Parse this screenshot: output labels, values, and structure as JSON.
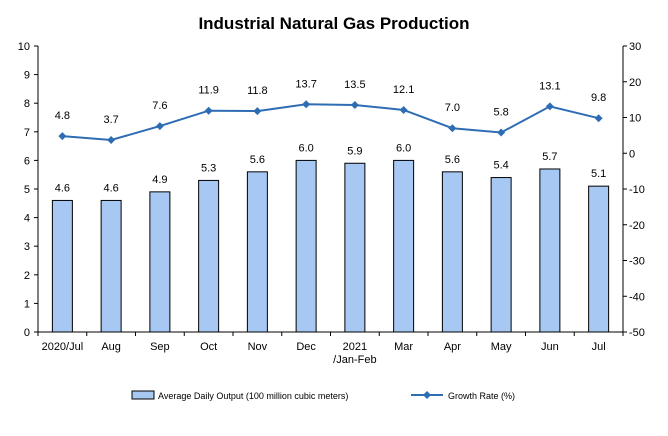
{
  "chart_data": {
    "type": "bar+line",
    "title": "Industrial Natural Gas Production",
    "categories": [
      "2020/Jul",
      "Aug",
      "Sep",
      "Oct",
      "Nov",
      "Dec",
      "2021|/Jan-Feb",
      "Mar",
      "Apr",
      "May",
      "Jun",
      "Jul"
    ],
    "series": [
      {
        "name": "Average Daily Output (100 million cubic meters)",
        "type": "bar",
        "axis": "left",
        "color": "#a6c8f2",
        "stroke": "#000000",
        "values": [
          4.6,
          4.6,
          4.9,
          5.3,
          5.6,
          6.0,
          5.9,
          6.0,
          5.6,
          5.4,
          5.7,
          5.1
        ],
        "labels": [
          "4.6",
          "4.6",
          "4.9",
          "5.3",
          "5.6",
          "6.0",
          "5.9",
          "6.0",
          "5.6",
          "5.4",
          "5.7",
          "5.1"
        ]
      },
      {
        "name": "Growth Rate (%)",
        "type": "line",
        "axis": "right",
        "color": "#2e6db4",
        "marker": "diamond",
        "values": [
          4.8,
          3.7,
          7.6,
          11.9,
          11.8,
          13.7,
          13.5,
          12.1,
          7.0,
          5.8,
          13.1,
          9.8
        ],
        "labels": [
          "4.8",
          "3.7",
          "7.6",
          "11.9",
          "11.8",
          "13.7",
          "13.5",
          "12.1",
          "7.0",
          "5.8",
          "13.1",
          "9.8"
        ]
      }
    ],
    "y_left": {
      "min": 0,
      "max": 10,
      "step": 1,
      "ticks": [
        "0",
        "1",
        "2",
        "3",
        "4",
        "5",
        "6",
        "7",
        "8",
        "9",
        "10"
      ]
    },
    "y_right": {
      "min": -50,
      "max": 30,
      "step": 10,
      "ticks": [
        "-50",
        "-40",
        "-30",
        "-20",
        "-10",
        "0",
        "10",
        "20",
        "30"
      ]
    },
    "grid": false,
    "legend_position": "bottom"
  }
}
